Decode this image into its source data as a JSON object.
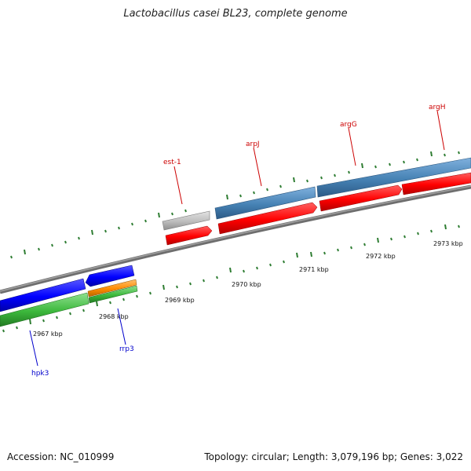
{
  "title": "Lactobacillus casei BL23, complete genome",
  "accession_text": "Accession: NC_010999",
  "summary_text": "Topology: circular; Length: 3,079,196 bp; Genes: 3,022",
  "colors": {
    "backbone": "#808080",
    "tick": "#2e7d32",
    "forward_cds": "#ff0000",
    "reverse_cds": "#0000ff",
    "gene_top": "#4682b4",
    "gene_top_blue": "#1515e6",
    "gray_gene": "#bdbdbd",
    "green_gene": "#3cb83c",
    "orange_gene": "#ff8c00",
    "label_forward": "#cc0000",
    "label_reverse": "#0000cc"
  },
  "ticks": [
    {
      "label": "2967 kbp"
    },
    {
      "label": "2968 kbp"
    },
    {
      "label": "2969 kbp"
    },
    {
      "label": "2970 kbp"
    },
    {
      "label": "2971 kbp"
    },
    {
      "label": "2972 kbp"
    },
    {
      "label": "2973 kbp"
    }
  ],
  "genes": [
    {
      "name": "est-1",
      "strand": "forward"
    },
    {
      "name": "arpJ",
      "strand": "forward"
    },
    {
      "name": "argG",
      "strand": "forward"
    },
    {
      "name": "argH",
      "strand": "forward"
    },
    {
      "name": "hpk3",
      "strand": "reverse"
    },
    {
      "name": "rrp3",
      "strand": "reverse"
    }
  ]
}
